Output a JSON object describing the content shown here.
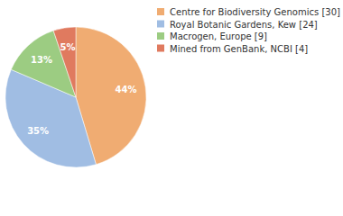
{
  "chart_data": {
    "type": "pie",
    "categories": [
      "Centre for Biodiversity Genomics [30]",
      "Royal Botanic Gardens, Kew [24]",
      "Macrogen, Europe [9]",
      "Mined from GenBank, NCBI [4]"
    ],
    "values": [
      44,
      35,
      13,
      5
    ],
    "value_labels": [
      "44%",
      "35%",
      "13%",
      "5%"
    ],
    "colors": [
      "#f0ac72",
      "#a0bde3",
      "#9ccc82",
      "#e07a5f"
    ],
    "data_labels": true
  }
}
